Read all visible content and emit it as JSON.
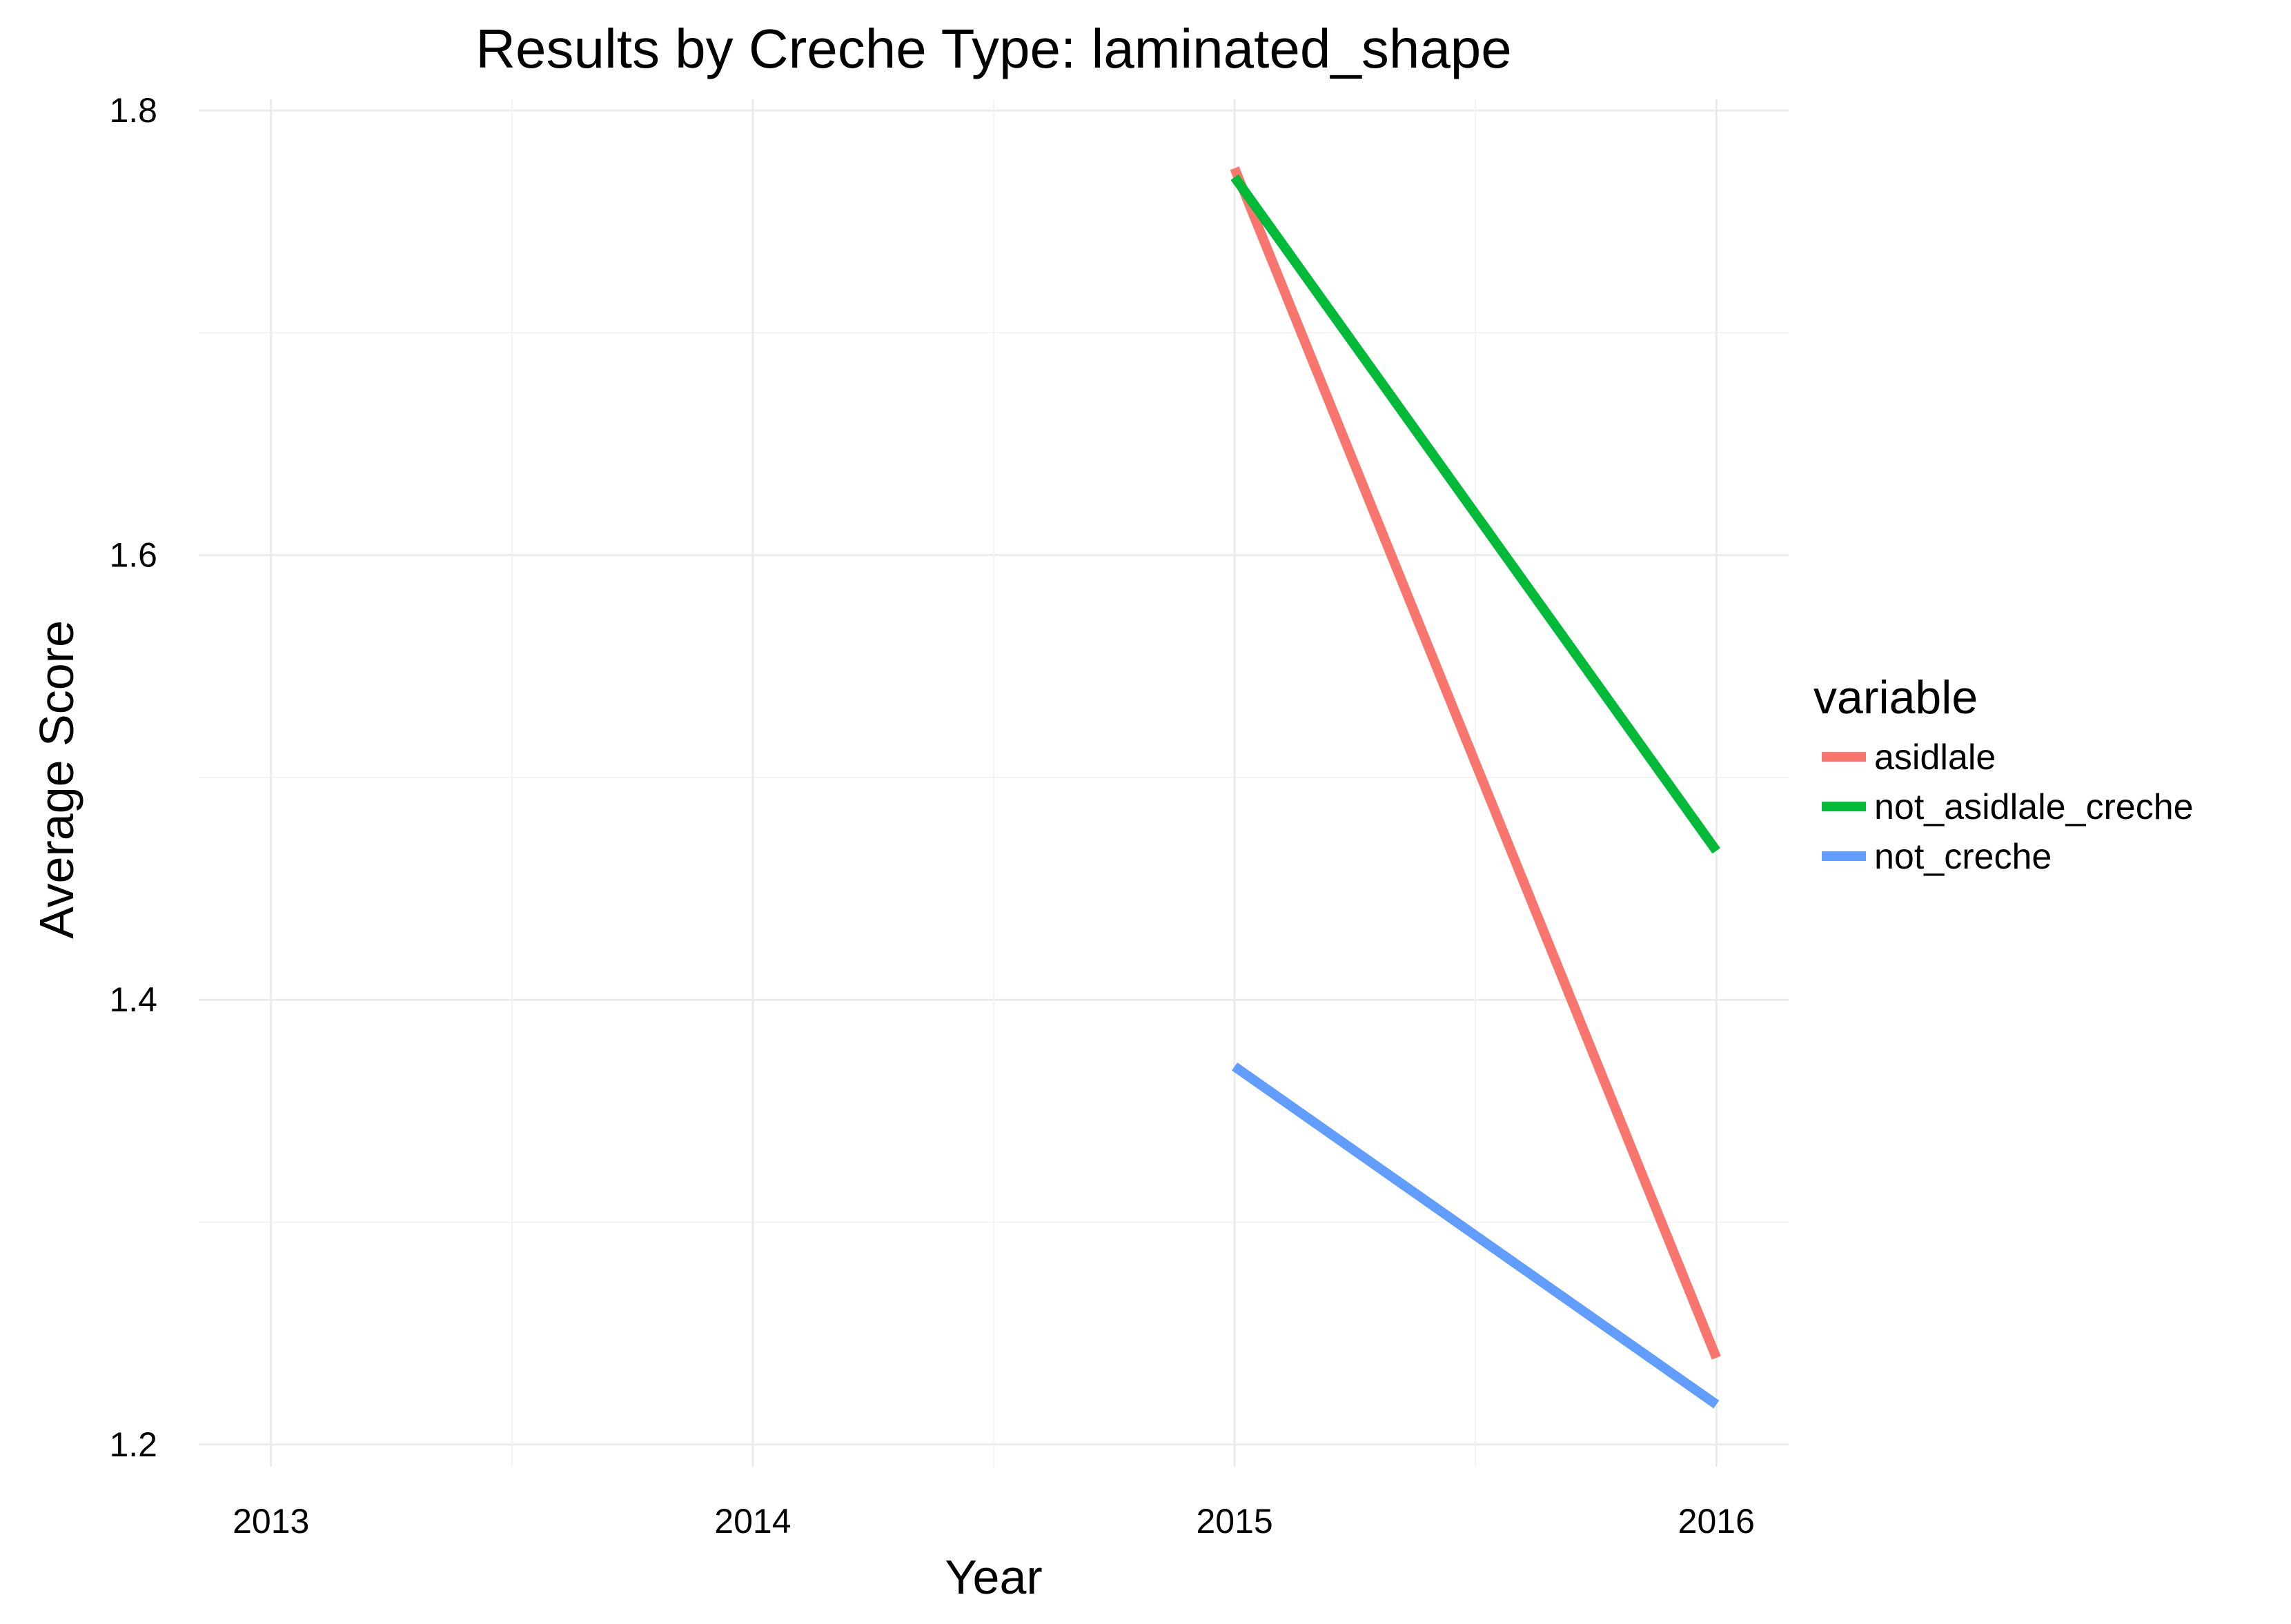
{
  "chart_data": {
    "type": "line",
    "title": "Results by Creche Type: laminated_shape",
    "xlabel": "Year",
    "ylabel": "Average Score",
    "x": [
      2015,
      2016
    ],
    "xlim": [
      2012.85,
      2016.15
    ],
    "ylim": [
      1.19,
      1.805
    ],
    "x_ticks": [
      2013,
      2014,
      2015,
      2016
    ],
    "x_tick_labels": [
      "2013",
      "2014",
      "2015",
      "2016"
    ],
    "y_ticks": [
      1.2,
      1.4,
      1.6,
      1.8
    ],
    "y_tick_labels": [
      "1.2",
      "1.4",
      "1.6",
      "1.8"
    ],
    "grid": true,
    "legend": {
      "title": "variable",
      "position": "right"
    },
    "series": [
      {
        "name": "asidlale",
        "values": [
          1.774,
          1.239
        ],
        "color": "#F8766D"
      },
      {
        "name": "not_asidlale_creche",
        "values": [
          1.77,
          1.467
        ],
        "color": "#00BA38"
      },
      {
        "name": "not_creche",
        "values": [
          1.37,
          1.218
        ],
        "color": "#619CFF"
      }
    ]
  }
}
